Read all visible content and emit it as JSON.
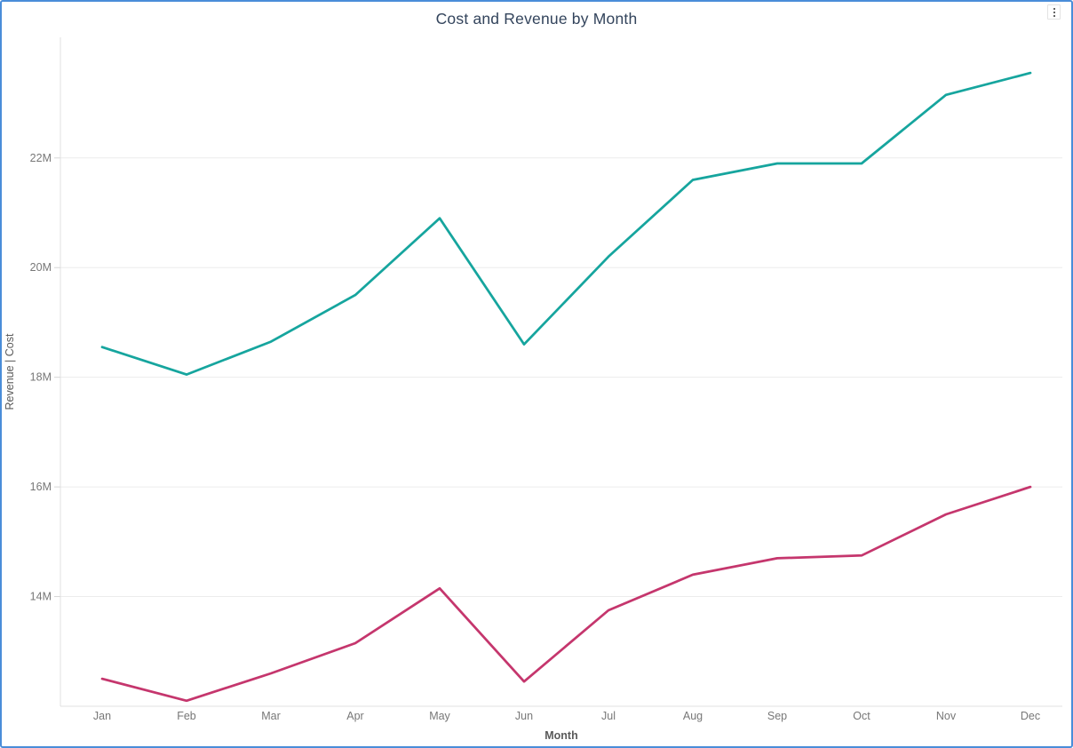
{
  "visual": {
    "border_color": "#4A8DD9",
    "more_options_icon": "vertical-ellipsis",
    "background": "#FFFFFF"
  },
  "chart_data": {
    "type": "line",
    "title": "Cost and Revenue by Month",
    "xlabel": "Month",
    "ylabel": "Revenue | Cost",
    "units": "millions",
    "categories": [
      "Jan",
      "Feb",
      "Mar",
      "Apr",
      "May",
      "Jun",
      "Jul",
      "Aug",
      "Sep",
      "Oct",
      "Nov",
      "Dec"
    ],
    "series": [
      {
        "name": "Revenue",
        "color": "#16A59E",
        "values": [
          18.55,
          18.05,
          18.65,
          19.5,
          20.9,
          18.6,
          20.2,
          21.6,
          21.9,
          21.9,
          23.15,
          23.55
        ]
      },
      {
        "name": "Cost",
        "color": "#C5366D",
        "values": [
          12.5,
          12.1,
          12.6,
          13.15,
          14.15,
          12.45,
          13.75,
          14.4,
          14.7,
          14.75,
          15.5,
          16.0
        ]
      }
    ],
    "y_ticks": [
      {
        "value": 14,
        "label": "14M"
      },
      {
        "value": 16,
        "label": "16M"
      },
      {
        "value": 18,
        "label": "18M"
      },
      {
        "value": 20,
        "label": "20M"
      },
      {
        "value": 22,
        "label": "22M"
      }
    ],
    "ylim": [
      12,
      24.2
    ],
    "grid": true,
    "legend": "none",
    "colors": {
      "gridline": "#ECECEC",
      "axis_line": "#E0E0E0",
      "tick_mark": "#D6D6D6",
      "tick_label": "#777777",
      "axis_title": "#5A5A5A",
      "title": "#33445C"
    }
  }
}
